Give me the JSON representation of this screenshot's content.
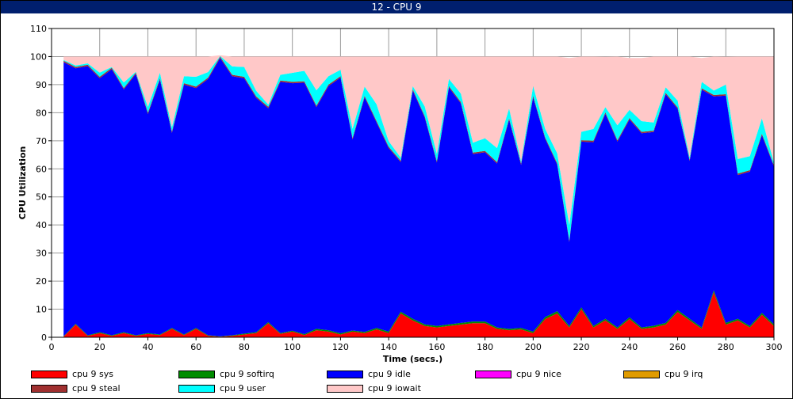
{
  "window": {
    "title": "12 - CPU 9"
  },
  "chart_data": {
    "type": "area",
    "stacked": true,
    "xlabel": "Time (secs.)",
    "ylabel": "CPU Utilization",
    "xlim": [
      0,
      300
    ],
    "ylim": [
      0,
      110
    ],
    "xticks": [
      0,
      20,
      40,
      60,
      80,
      100,
      120,
      140,
      160,
      180,
      200,
      220,
      240,
      260,
      280,
      300
    ],
    "yticks": [
      0,
      10,
      20,
      30,
      40,
      50,
      60,
      70,
      80,
      90,
      100,
      110
    ],
    "grid": true,
    "legend_position": "bottom",
    "x": [
      5,
      10,
      15,
      20,
      25,
      30,
      35,
      40,
      45,
      50,
      55,
      60,
      65,
      70,
      75,
      80,
      85,
      90,
      95,
      100,
      105,
      110,
      115,
      120,
      125,
      130,
      135,
      140,
      145,
      150,
      155,
      160,
      165,
      170,
      175,
      180,
      185,
      190,
      195,
      200,
      205,
      210,
      215,
      220,
      225,
      230,
      235,
      240,
      245,
      250,
      255,
      260,
      265,
      270,
      275,
      280,
      285,
      290,
      295,
      300
    ],
    "series": [
      {
        "name": "cpu 9 sys",
        "color": "#ff0000",
        "values": [
          0.2,
          4.5,
          0.5,
          1.5,
          0.5,
          1.5,
          0.5,
          1.2,
          0.8,
          3,
          0.8,
          3,
          0.5,
          0.2,
          0.5,
          1,
          1.5,
          5,
          1.2,
          2,
          0.8,
          2.5,
          2,
          1,
          2,
          1.5,
          2.8,
          1.5,
          8.5,
          6,
          4,
          3.5,
          4,
          4.5,
          5,
          5,
          3,
          2.5,
          2.8,
          1.5,
          6.5,
          8.5,
          3.5,
          10,
          3.5,
          6,
          3,
          6.5,
          3,
          3.5,
          4.5,
          9,
          6,
          3,
          16,
          4.5,
          6,
          3.5,
          8,
          4
        ]
      },
      {
        "name": "cpu 9 softirq",
        "color": "#008c00",
        "values": [
          0.2,
          0.3,
          0.2,
          0.3,
          0.2,
          0.3,
          0.2,
          0.3,
          0.2,
          0.3,
          0.2,
          0.3,
          0.2,
          0.1,
          0.2,
          0.3,
          0.3,
          0.4,
          0.3,
          0.3,
          0.3,
          0.5,
          0.5,
          0.4,
          0.4,
          0.4,
          0.5,
          0.5,
          0.6,
          0.6,
          0.6,
          0.5,
          0.6,
          0.6,
          0.6,
          0.6,
          0.5,
          0.5,
          0.5,
          0.5,
          0.7,
          0.8,
          0.5,
          0.7,
          0.5,
          0.6,
          0.5,
          0.6,
          0.5,
          0.6,
          0.6,
          0.7,
          0.6,
          0.5,
          0.7,
          0.6,
          0.6,
          0.5,
          0.7,
          0.6
        ]
      },
      {
        "name": "cpu 9 idle",
        "color": "#0000ff",
        "values": [
          97.6,
          91,
          95.9,
          90.5,
          94.8,
          86.5,
          93.1,
          78,
          90.8,
          69.5,
          89,
          85.5,
          91.3,
          99.2,
          92.3,
          91,
          83.5,
          76.2,
          89.5,
          88.2,
          89.6,
          79,
          87,
          91.1,
          68.1,
          83.6,
          73.2,
          65.4,
          53.3,
          81.3,
          73.6,
          58.2,
          84.4,
          78.2,
          59.7,
          60.3,
          58.4,
          74.5,
          58.1,
          83.5,
          63.5,
          52.2,
          30,
          59,
          65.5,
          73,
          66.2,
          70.5,
          69.2,
          69,
          81.5,
          71.7,
          56.2,
          84.7,
          69.1,
          81,
          51.2,
          55,
          63.3,
          56.2
        ]
      },
      {
        "name": "cpu 9 nice",
        "color": "#ff00ff",
        "values": [
          0,
          0,
          0,
          0,
          0,
          0,
          0,
          0,
          0,
          0,
          0,
          0,
          0,
          0,
          0,
          0,
          0,
          0,
          0,
          0,
          0,
          0,
          0,
          0,
          0,
          0,
          0,
          0,
          0,
          0,
          0,
          0,
          0,
          0,
          0,
          0,
          0,
          0,
          0,
          0,
          0,
          0,
          0,
          0,
          0,
          0,
          0,
          0,
          0,
          0,
          0,
          0,
          0,
          0,
          0,
          0,
          0,
          0,
          0,
          0
        ]
      },
      {
        "name": "cpu 9 irq",
        "color": "#e09b00",
        "values": [
          0,
          0,
          0,
          0,
          0,
          0,
          0,
          0,
          0,
          0,
          0,
          0,
          0,
          0,
          0,
          0,
          0,
          0,
          0,
          0,
          0,
          0,
          0,
          0,
          0,
          0,
          0,
          0,
          0,
          0,
          0,
          0,
          0,
          0,
          0,
          0,
          0,
          0,
          0,
          0,
          0,
          0,
          0,
          0,
          0,
          0,
          0,
          0,
          0,
          0,
          0,
          0,
          0,
          0,
          0,
          0,
          0,
          0,
          0,
          0
        ]
      },
      {
        "name": "cpu 9 steal",
        "color": "#a03030",
        "values": [
          0.5,
          0.5,
          0.5,
          0.5,
          0.5,
          0.5,
          0.5,
          0.5,
          0.5,
          0.5,
          0.5,
          0.5,
          0.5,
          0.5,
          0.5,
          0.5,
          0.5,
          0.5,
          0.5,
          0.5,
          0.5,
          0.5,
          0.5,
          0.5,
          0.5,
          0.5,
          0.5,
          0.5,
          0.5,
          0.5,
          0.5,
          0.5,
          0.5,
          0.5,
          0.5,
          0.5,
          0.5,
          0.5,
          0.5,
          0.5,
          0.5,
          0.5,
          0.5,
          0.5,
          0.5,
          0.5,
          0.5,
          0.5,
          0.5,
          0.5,
          0.5,
          0.5,
          0.5,
          0.5,
          0.5,
          0.5,
          0.5,
          0.5,
          0.5,
          0.5
        ]
      },
      {
        "name": "cpu 9 user",
        "color": "#00ffff",
        "values": [
          0.3,
          0.5,
          0.5,
          1.5,
          0.3,
          2,
          0.3,
          2,
          2,
          1.5,
          2.5,
          3.5,
          2,
          0.2,
          3,
          3.5,
          2,
          0.8,
          2,
          3.2,
          3.7,
          5.5,
          3,
          2.3,
          3.3,
          3.3,
          6,
          2,
          1.1,
          1.1,
          3.5,
          2.6,
          2.5,
          3,
          3.5,
          4.5,
          5,
          3.5,
          0.8,
          3.5,
          3,
          3.5,
          5.5,
          3,
          4.2,
          1.9,
          5.3,
          2.9,
          3.8,
          2.9,
          2,
          2.4,
          0.9,
          2.3,
          1.6,
          3.4,
          5.2,
          5,
          5.5,
          0.9
        ]
      },
      {
        "name": "cpu 9 iowait",
        "color": "#ffc8c8",
        "values": [
          1.2,
          3.2,
          2.4,
          5.7,
          3.7,
          9.2,
          5.4,
          18,
          5.7,
          25.2,
          7,
          7.2,
          5.5,
          0.3,
          3.5,
          3.7,
          12.2,
          17.1,
          6.5,
          5.8,
          5.1,
          12,
          7,
          4.7,
          25.7,
          10.7,
          17,
          30.1,
          36,
          10.5,
          17.8,
          34.7,
          8,
          13.2,
          30.7,
          29.1,
          32.6,
          18.5,
          37.3,
          10.5,
          25.8,
          34.5,
          59.5,
          26.8,
          25.8,
          17.9,
          24.5,
          18.5,
          22.5,
          23.5,
          10.9,
          15.7,
          35.8,
          8.5,
          12.1,
          9.9,
          36.5,
          35.5,
          22,
          37.8
        ]
      }
    ]
  }
}
